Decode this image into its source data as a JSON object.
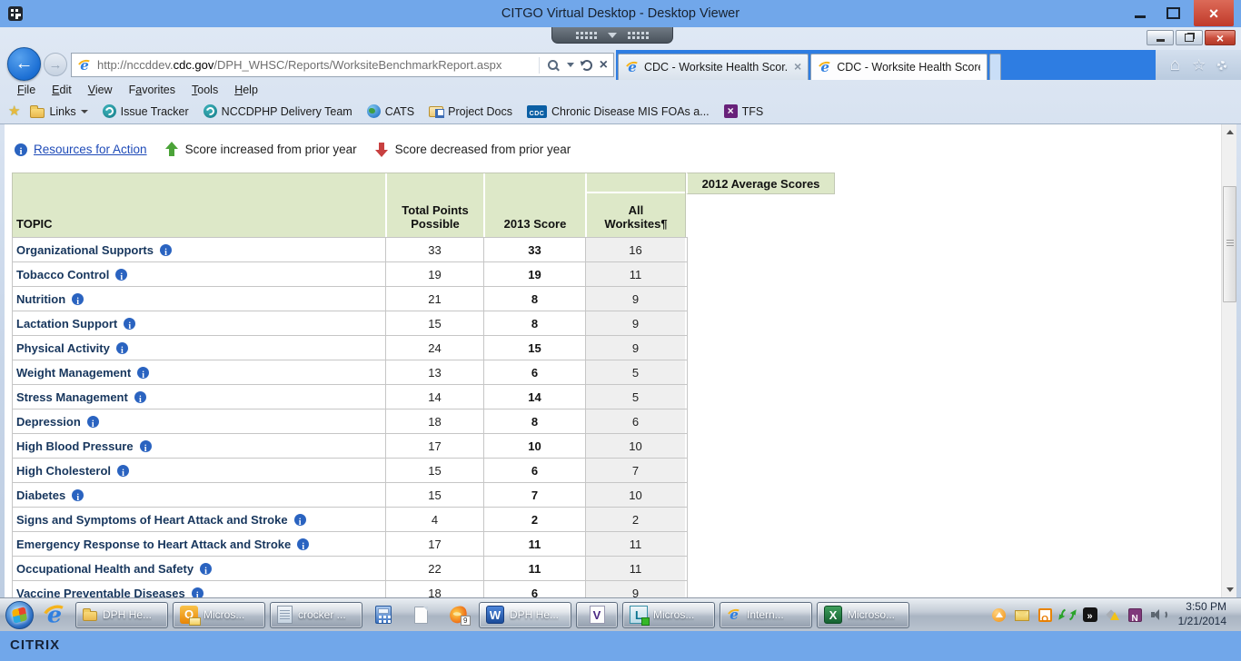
{
  "viewer": {
    "title": "CITGO Virtual Desktop - Desktop Viewer"
  },
  "browser": {
    "url_prefix": "http://nccddev.",
    "url_domain": "cdc.gov",
    "url_path": "/DPH_WHSC/Reports/WorksiteBenchmarkReport.aspx",
    "tabs": [
      {
        "label": "CDC - Worksite Health Scor...",
        "active": false,
        "closable": true
      },
      {
        "label": "CDC - Worksite Health ScoreC...",
        "active": true,
        "closable": false
      }
    ],
    "menu": [
      {
        "label": "File",
        "accel": 0
      },
      {
        "label": "Edit",
        "accel": 0
      },
      {
        "label": "View",
        "accel": 0
      },
      {
        "label": "Favorites",
        "accel": 1
      },
      {
        "label": "Tools",
        "accel": 0
      },
      {
        "label": "Help",
        "accel": 0
      }
    ],
    "favorites": [
      {
        "icon": "folder",
        "label": "Links",
        "caret": true
      },
      {
        "icon": "swirl",
        "label": "Issue Tracker"
      },
      {
        "icon": "swirl",
        "label": "NCCDPHP Delivery Team"
      },
      {
        "icon": "globe",
        "label": "CATS"
      },
      {
        "icon": "folder-link",
        "label": "Project Docs"
      },
      {
        "icon": "cdc",
        "label": "Chronic Disease MIS FOAs a..."
      },
      {
        "icon": "tfs",
        "label": "TFS"
      }
    ]
  },
  "page": {
    "legend": {
      "resources_link": "Resources for Action",
      "increase_label": "Score increased from prior year",
      "decrease_label": "Score decreased from prior year"
    },
    "table": {
      "group_header": "2012 Average Scores",
      "columns": {
        "topic": "TOPIC",
        "total_points": "Total Points\nPossible",
        "score_2013": "2013 Score",
        "all_worksites": "All\nWorksites¶"
      },
      "rows": [
        {
          "topic": "Organizational Supports",
          "total": "33",
          "score": "33",
          "all": "16"
        },
        {
          "topic": "Tobacco Control",
          "total": "19",
          "score": "19",
          "all": "11"
        },
        {
          "topic": "Nutrition",
          "total": "21",
          "score": "8",
          "all": "9"
        },
        {
          "topic": "Lactation Support",
          "total": "15",
          "score": "8",
          "all": "9"
        },
        {
          "topic": "Physical Activity",
          "total": "24",
          "score": "15",
          "all": "9"
        },
        {
          "topic": "Weight Management",
          "total": "13",
          "score": "6",
          "all": "5"
        },
        {
          "topic": "Stress Management",
          "total": "14",
          "score": "14",
          "all": "5"
        },
        {
          "topic": "Depression",
          "total": "18",
          "score": "8",
          "all": "6"
        },
        {
          "topic": "High Blood Pressure",
          "total": "17",
          "score": "10",
          "all": "10"
        },
        {
          "topic": "High Cholesterol",
          "total": "15",
          "score": "6",
          "all": "7"
        },
        {
          "topic": "Diabetes",
          "total": "15",
          "score": "7",
          "all": "10"
        },
        {
          "topic": "Signs and Symptoms of Heart Attack and Stroke",
          "total": "4",
          "score": "2",
          "all": "2"
        },
        {
          "topic": "Emergency Response to Heart Attack and Stroke",
          "total": "17",
          "score": "11",
          "all": "11"
        },
        {
          "topic": "Occupational Health and Safety",
          "total": "22",
          "score": "11",
          "all": "11"
        },
        {
          "topic": "Vaccine Preventable Diseases",
          "total": "18",
          "score": "6",
          "all": "9"
        }
      ]
    }
  },
  "taskbar": {
    "buttons": [
      {
        "icon": "folder",
        "label": "DPH He...",
        "framed": true
      },
      {
        "icon": "outlook",
        "label": "Micros...",
        "framed": true
      },
      {
        "icon": "notepad",
        "label": "crocker ...",
        "framed": true
      },
      {
        "icon": "calculator",
        "framed": false
      },
      {
        "icon": "document",
        "framed": false
      },
      {
        "icon": "snagit",
        "framed": false,
        "badge": "9"
      },
      {
        "icon": "word",
        "label": "DPH He...",
        "framed": true,
        "active": true
      },
      {
        "icon": "visio",
        "framed": true
      },
      {
        "icon": "lync",
        "label": "Micros...",
        "framed": true
      },
      {
        "icon": "ie",
        "label": "Intern...",
        "framed": true
      },
      {
        "icon": "excel",
        "label": "Microso...",
        "framed": true
      }
    ],
    "tray": [
      {
        "icon": "hidden-icons"
      },
      {
        "icon": "envelope"
      },
      {
        "icon": "outlook-tray"
      },
      {
        "icon": "sync"
      },
      {
        "icon": "broadcast"
      },
      {
        "icon": "warning"
      },
      {
        "icon": "onenote"
      },
      {
        "icon": "speaker"
      }
    ],
    "clock": {
      "time": "3:50 PM",
      "date": "1/21/2014"
    }
  },
  "citrix": {
    "brand": "CITRIX"
  }
}
